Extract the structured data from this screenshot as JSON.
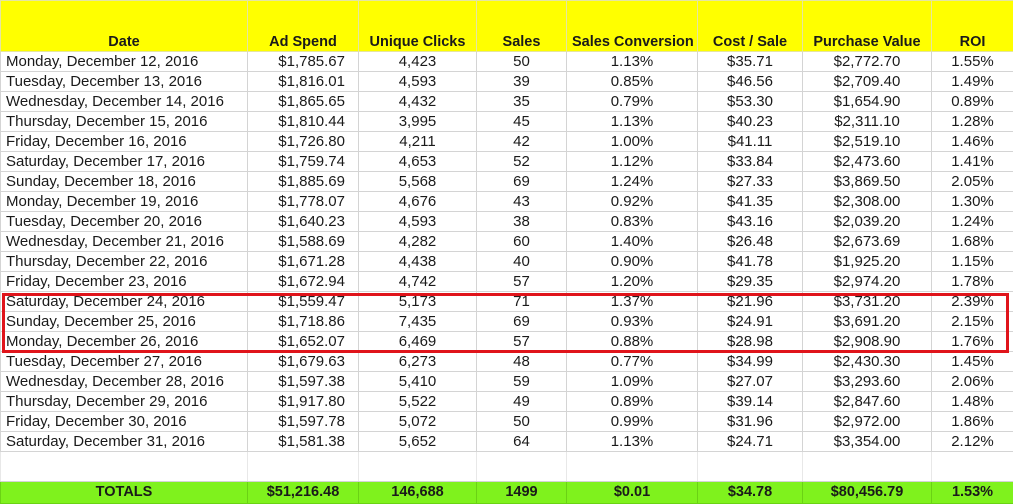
{
  "headers": [
    "Date",
    "Ad Spend",
    "Unique Clicks",
    "Sales",
    "Sales Conversion",
    "Cost / Sale",
    "Purchase Value",
    "ROI"
  ],
  "rows": [
    [
      "Monday, December 12, 2016",
      "$1,785.67",
      "4,423",
      "50",
      "1.13%",
      "$35.71",
      "$2,772.70",
      "1.55%"
    ],
    [
      "Tuesday, December 13, 2016",
      "$1,816.01",
      "4,593",
      "39",
      "0.85%",
      "$46.56",
      "$2,709.40",
      "1.49%"
    ],
    [
      "Wednesday, December 14, 2016",
      "$1,865.65",
      "4,432",
      "35",
      "0.79%",
      "$53.30",
      "$1,654.90",
      "0.89%"
    ],
    [
      "Thursday, December 15, 2016",
      "$1,810.44",
      "3,995",
      "45",
      "1.13%",
      "$40.23",
      "$2,311.10",
      "1.28%"
    ],
    [
      "Friday, December 16, 2016",
      "$1,726.80",
      "4,211",
      "42",
      "1.00%",
      "$41.11",
      "$2,519.10",
      "1.46%"
    ],
    [
      "Saturday, December 17, 2016",
      "$1,759.74",
      "4,653",
      "52",
      "1.12%",
      "$33.84",
      "$2,473.60",
      "1.41%"
    ],
    [
      "Sunday, December 18, 2016",
      "$1,885.69",
      "5,568",
      "69",
      "1.24%",
      "$27.33",
      "$3,869.50",
      "2.05%"
    ],
    [
      "Monday, December 19, 2016",
      "$1,778.07",
      "4,676",
      "43",
      "0.92%",
      "$41.35",
      "$2,308.00",
      "1.30%"
    ],
    [
      "Tuesday, December 20, 2016",
      "$1,640.23",
      "4,593",
      "38",
      "0.83%",
      "$43.16",
      "$2,039.20",
      "1.24%"
    ],
    [
      "Wednesday, December 21, 2016",
      "$1,588.69",
      "4,282",
      "60",
      "1.40%",
      "$26.48",
      "$2,673.69",
      "1.68%"
    ],
    [
      "Thursday, December 22, 2016",
      "$1,671.28",
      "4,438",
      "40",
      "0.90%",
      "$41.78",
      "$1,925.20",
      "1.15%"
    ],
    [
      "Friday, December 23, 2016",
      "$1,672.94",
      "4,742",
      "57",
      "1.20%",
      "$29.35",
      "$2,974.20",
      "1.78%"
    ],
    [
      "Saturday, December 24, 2016",
      "$1,559.47",
      "5,173",
      "71",
      "1.37%",
      "$21.96",
      "$3,731.20",
      "2.39%"
    ],
    [
      "Sunday, December 25, 2016",
      "$1,718.86",
      "7,435",
      "69",
      "0.93%",
      "$24.91",
      "$3,691.20",
      "2.15%"
    ],
    [
      "Monday, December 26, 2016",
      "$1,652.07",
      "6,469",
      "57",
      "0.88%",
      "$28.98",
      "$2,908.90",
      "1.76%"
    ],
    [
      "Tuesday, December 27, 2016",
      "$1,679.63",
      "6,273",
      "48",
      "0.77%",
      "$34.99",
      "$2,430.30",
      "1.45%"
    ],
    [
      "Wednesday, December 28, 2016",
      "$1,597.38",
      "5,410",
      "59",
      "1.09%",
      "$27.07",
      "$3,293.60",
      "2.06%"
    ],
    [
      "Thursday, December 29, 2016",
      "$1,917.80",
      "5,522",
      "49",
      "0.89%",
      "$39.14",
      "$2,847.60",
      "1.48%"
    ],
    [
      "Friday, December 30, 2016",
      "$1,597.78",
      "5,072",
      "50",
      "0.99%",
      "$31.96",
      "$2,972.00",
      "1.86%"
    ],
    [
      "Saturday, December 31, 2016",
      "$1,581.38",
      "5,652",
      "64",
      "1.13%",
      "$24.71",
      "$3,354.00",
      "2.12%"
    ]
  ],
  "totals": [
    "TOTALS",
    "$51,216.48",
    "146,688",
    "1499",
    "$0.01",
    "$34.78",
    "$80,456.79",
    "1.53%"
  ],
  "colors": {
    "header_bg": "#ffff00",
    "totals_bg": "#7ff21d",
    "highlight_border": "#e0141b"
  }
}
